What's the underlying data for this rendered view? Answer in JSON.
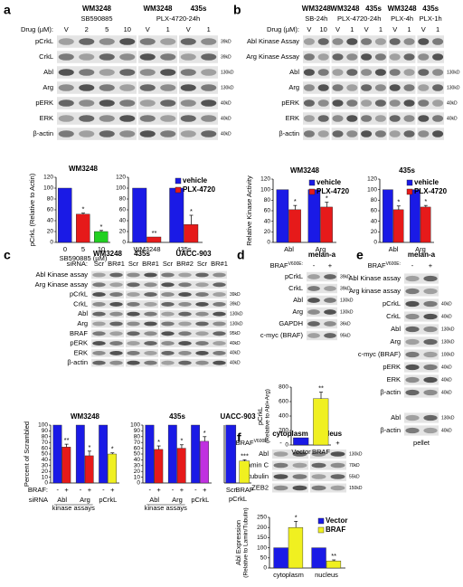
{
  "blots": [
    {
      "label": "a",
      "h1": [
        "WM3248",
        "WM3248",
        "435s"
      ],
      "h2": [
        "SB590885",
        "PLX-4720-24h"
      ],
      "lane_label": "Drug (µM):",
      "lanes": [
        "V",
        "2",
        "5",
        "10",
        "V",
        "1",
        "V",
        "1"
      ],
      "rows": [
        {
          "name": "pCrkL",
          "kd": "39kD"
        },
        {
          "name": "CrkL",
          "kd": "39kD"
        },
        {
          "name": "Abl",
          "kd": "130kD"
        },
        {
          "name": "Arg",
          "kd": "130kD"
        },
        {
          "name": "pERK",
          "kd": "40kD"
        },
        {
          "name": "ERK",
          "kd": "40kD"
        },
        {
          "name": "β-actin",
          "kd": "40kD"
        }
      ]
    },
    {
      "label": "b",
      "h1": [
        "WM3248",
        "WM3248",
        "435s",
        "WM3248",
        "435s"
      ],
      "h2": [
        "SB-24h",
        "PLX-4720-24h",
        "PLX-4h",
        "PLX-1h"
      ],
      "lane_label": "Drug (µM):",
      "lanes": [
        "V",
        "10",
        "V",
        "1",
        "V",
        "1",
        "V",
        "1",
        "V",
        "1"
      ],
      "rows": [
        {
          "name": "Abl Kinase Assay"
        },
        {
          "name": "Arg Kinase Assay"
        },
        {
          "name": "Abl",
          "kd": "130kD"
        },
        {
          "name": "Arg",
          "kd": "130kD"
        },
        {
          "name": "pERK",
          "kd": "40kD"
        },
        {
          "name": "ERK",
          "kd": "40kD"
        },
        {
          "name": "β-actin"
        }
      ]
    },
    {
      "label": "c",
      "h1": [
        "WM3248",
        "435s",
        "UACC-903"
      ],
      "lane_label": "siRNA:",
      "lanes": [
        "Scr",
        "BR#1",
        "Scr",
        "BR#1",
        "Scr",
        "BR#2",
        "Scr",
        "BR#1"
      ],
      "rows": [
        {
          "name": "Abl Kinase assay"
        },
        {
          "name": "Arg Kinase assay"
        },
        {
          "name": "pCrkL",
          "kd": "39kD"
        },
        {
          "name": "CrkL",
          "kd": "39kD"
        },
        {
          "name": "Abl",
          "kd": "130kD"
        },
        {
          "name": "Arg",
          "kd": "130kD"
        },
        {
          "name": "BRAF",
          "kd": "95kD"
        },
        {
          "name": "pERK",
          "kd": "40kD"
        },
        {
          "name": "ERK",
          "kd": "40kD"
        },
        {
          "name": "β-actin",
          "kd": "40kD"
        }
      ]
    },
    {
      "label": "d",
      "h1": [
        "melan-a"
      ],
      "lane_label": "BRAF",
      "lane_sup": "V600E:",
      "lanes": [
        "-",
        "+"
      ],
      "rows": [
        {
          "name": "pCrkL",
          "kd": "39kD"
        },
        {
          "name": "CrkL",
          "kd": "39kD"
        },
        {
          "name": "Abl",
          "kd": "130kD"
        },
        {
          "name": "Arg",
          "kd": "130kD"
        },
        {
          "name": "GAPDH",
          "kd": "36kD"
        },
        {
          "name": "c-myc (BRAF)",
          "kd": "95kD"
        }
      ]
    },
    {
      "label": "e",
      "h1": [
        "melan-a"
      ],
      "lane_label": "BRAF",
      "lane_sup": "V600E:",
      "lanes": [
        "-",
        "+"
      ],
      "footer": "pellet",
      "rows": [
        {
          "name": "Abl Kinase assay"
        },
        {
          "name": "Arg kinase assay"
        },
        {
          "name": "pCrkL",
          "kd": "40kD"
        },
        {
          "name": "CrkL",
          "kd": "40kD"
        },
        {
          "name": "Abl",
          "kd": "130kD"
        },
        {
          "name": "Arg",
          "kd": "130kD"
        },
        {
          "name": "c-myc (BRAF)",
          "kd": "100kD"
        },
        {
          "name": "pERK",
          "kd": "40kD"
        },
        {
          "name": "ERK",
          "kd": "40kD"
        },
        {
          "name": "β-actin",
          "kd": "40kD"
        },
        {
          "name": "Abl",
          "kd": "130kD"
        },
        {
          "name": "β-actin",
          "kd": "40kD"
        }
      ]
    },
    {
      "label": "f",
      "h1": [
        "cytoplasm",
        "nucleus"
      ],
      "lane_label": "BRAF",
      "lane_sup": "V600E:",
      "lanes": [
        "-",
        "+",
        "-",
        "+"
      ],
      "rows": [
        {
          "name": "Abl",
          "kd": "130kD"
        },
        {
          "name": "Lamin C",
          "kd": "70kD"
        },
        {
          "name": "α-tubulin",
          "kd": "55kD"
        },
        {
          "name": "ZEB2",
          "kd": "150kD"
        }
      ]
    }
  ],
  "chart_data": [
    {
      "type": "bar",
      "title": "WM3248",
      "ylabel": "pCrkL (Relative to Actin)",
      "xlabel": "SB590885 (µM)",
      "categories": [
        "0",
        "5",
        "10"
      ],
      "series": [
        {
          "values": [
            100,
            52,
            20
          ],
          "errors": [
            0,
            2,
            2
          ],
          "colors": [
            "#1a1ae6",
            "#e61a1a",
            "#22d022"
          ],
          "significance": [
            null,
            "*",
            "*"
          ]
        }
      ],
      "ylim": [
        0,
        120
      ],
      "yticks": [
        0,
        20,
        40,
        60,
        80,
        100,
        120
      ]
    },
    {
      "type": "bar",
      "categories": [
        "WM3248",
        "435s"
      ],
      "legend": "top-right",
      "series": [
        {
          "name": "vehicle",
          "color": "#1a1ae6",
          "values": [
            100,
            100
          ]
        },
        {
          "name": "PLX-4720",
          "color": "#e61a1a",
          "values": [
            10,
            33
          ],
          "errors": [
            0,
            17
          ],
          "significance": [
            "**",
            "*"
          ]
        }
      ],
      "ylim": [
        0,
        120
      ],
      "yticks": [
        0,
        20,
        40,
        60,
        80,
        100,
        120
      ]
    },
    {
      "type": "bar",
      "title": "WM3248",
      "ylabel": "Relative Kinase Activity",
      "categories": [
        "Abl",
        "Arg"
      ],
      "legend": "top-right",
      "series": [
        {
          "name": "vehicle",
          "color": "#1a1ae6",
          "values": [
            100,
            100
          ]
        },
        {
          "name": "PLX-4720",
          "color": "#e61a1a",
          "values": [
            62,
            67
          ],
          "errors": [
            8,
            9
          ],
          "significance": [
            "*",
            "*"
          ]
        }
      ],
      "ylim": [
        0,
        120
      ],
      "yticks": [
        0,
        20,
        40,
        60,
        80,
        100,
        120
      ]
    },
    {
      "type": "bar",
      "title": "435s",
      "categories": [
        "Abl",
        "Arg"
      ],
      "legend": "top-right",
      "series": [
        {
          "name": "vehicle",
          "color": "#1a1ae6",
          "values": [
            100,
            100
          ]
        },
        {
          "name": "PLX-4720",
          "color": "#e61a1a",
          "values": [
            62,
            67
          ],
          "errors": [
            7,
            3
          ],
          "significance": [
            "*",
            "*"
          ]
        }
      ],
      "ylim": [
        0,
        120
      ],
      "yticks": [
        0,
        20,
        40,
        60,
        80,
        100,
        120
      ]
    },
    {
      "type": "bar",
      "title": "WM3248",
      "ylabel": "Percent of Scrambled",
      "categories": [
        "Abl",
        "Arg",
        "pCrkL"
      ],
      "group_note": "kinase assays",
      "row_labels": [
        "BRAF:",
        "siRNA"
      ],
      "series": [
        {
          "name": "-",
          "color": "#1a1ae6",
          "values": [
            100,
            100,
            100
          ]
        },
        {
          "name": "+",
          "values": [
            62,
            47,
            50
          ],
          "errors": [
            5,
            8,
            2
          ],
          "colors": [
            "#e61a1a",
            "#e61a1a",
            "#f0f020"
          ],
          "significance": [
            "**",
            "*",
            "*"
          ]
        }
      ],
      "ylim": [
        0,
        100
      ],
      "yticks": [
        0,
        10,
        20,
        30,
        40,
        50,
        60,
        70,
        80,
        90,
        100
      ]
    },
    {
      "type": "bar",
      "title": "435s",
      "categories": [
        "Abl",
        "Arg",
        "pCrkL"
      ],
      "group_note": "kinase assays",
      "series": [
        {
          "name": "-",
          "color": "#1a1ae6",
          "values": [
            100,
            100,
            100
          ]
        },
        {
          "name": "+",
          "values": [
            58,
            60,
            72
          ],
          "errors": [
            6,
            6,
            8
          ],
          "colors": [
            "#e61a1a",
            "#e61a1a",
            "#c030e0"
          ],
          "significance": [
            "*",
            "*",
            "*"
          ]
        }
      ],
      "ylim": [
        0,
        100
      ],
      "yticks": [
        0,
        10,
        20,
        30,
        40,
        50,
        60,
        70,
        80,
        90,
        100
      ]
    },
    {
      "type": "bar",
      "title": "UACC-903",
      "xlabel": "pCrkL",
      "categories": [
        "Scr",
        "BRAF"
      ],
      "series": [
        {
          "values": [
            100,
            38
          ],
          "errors": [
            0,
            2
          ],
          "colors": [
            "#1a1ae6",
            "#f0f020"
          ],
          "significance": [
            null,
            "***"
          ]
        }
      ],
      "ylim": [
        0,
        100
      ]
    },
    {
      "type": "bar",
      "ylabel": "pCrkL",
      "ylabel2": "(Relative to Abl+Arg)",
      "categories": [
        "Vector",
        "BRAF"
      ],
      "series": [
        {
          "values": [
            100,
            640
          ],
          "errors": [
            0,
            90
          ],
          "colors": [
            "#1a1ae6",
            "#f0f020"
          ],
          "significance": [
            null,
            "**"
          ]
        }
      ],
      "ylim": [
        0,
        800
      ],
      "yticks": [
        0,
        200,
        400,
        600,
        800
      ]
    },
    {
      "type": "bar",
      "ylabel": "Abl Expression",
      "ylabel2": "(Relative to Lamin/Tubulin)",
      "categories": [
        "cytoplasm",
        "nucleus"
      ],
      "legend": "top-right",
      "series": [
        {
          "name": "Vector",
          "color": "#1a1ae6",
          "values": [
            100,
            100
          ]
        },
        {
          "name": "BRAF",
          "color": "#f0f020",
          "values": [
            200,
            35
          ],
          "errors": [
            30,
            5
          ],
          "significance": [
            "*",
            "**"
          ]
        }
      ],
      "ylim": [
        0,
        250
      ],
      "yticks": [
        0,
        50,
        100,
        150,
        200,
        250
      ]
    }
  ]
}
